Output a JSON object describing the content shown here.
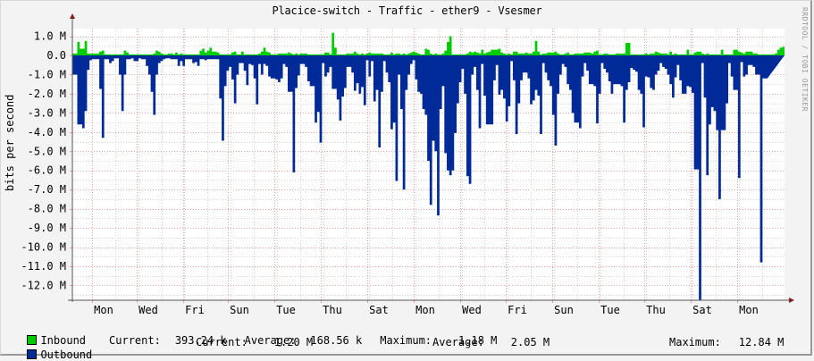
{
  "title": "Placice-switch - Traffic - ether9 - Vsesmer",
  "watermark": "RRDTOOL / TOBI OETIKER",
  "colors": {
    "background": "#f3f3f3",
    "plot_bg": "#ffffff",
    "inbound": "#00cc00",
    "outbound": "#002a97",
    "grid_major": "#e8a0a0",
    "grid_minor": "#d0d0d0",
    "axis": "#555555",
    "arrow": "#8b1a1a"
  },
  "legend": {
    "inbound": {
      "label": "Inbound",
      "current_label": "Current:",
      "current": "393.24 k",
      "average_label": "Average:",
      "average": "168.56 k",
      "maximum_label": "Maximum:",
      "maximum": "1.18 M"
    },
    "outbound": {
      "label": "Outbound",
      "current_label": "Current:",
      "current": "1.20 M",
      "average_label": "Average:",
      "average": "2.05 M",
      "maximum_label": "Maximum:",
      "maximum": "12.84 M"
    }
  },
  "chart_data": {
    "type": "area",
    "title": "Placice-switch - Traffic - ether9 - Vsesmer",
    "xlabel": "",
    "ylabel": "bits per second",
    "ylim": [
      -12.84,
      1.2
    ],
    "y_unit": "M",
    "y_ticks": [
      "1.0 M",
      "0.0",
      "-1.0 M",
      "-2.0 M",
      "-3.0 M",
      "-4.0 M",
      "-5.0 M",
      "-6.0 M",
      "-7.0 M",
      "-8.0 M",
      "-9.0 M",
      "-10.0 M",
      "-11.0 M",
      "-12.0 M"
    ],
    "x_ticks": [
      "Mon",
      "Wed",
      "Fri",
      "Sun",
      "Tue",
      "Thu",
      "Sat",
      "Mon",
      "Wed",
      "Fri",
      "Sun",
      "Tue",
      "Thu",
      "Sat",
      "Mon"
    ],
    "grid": true,
    "legend_position": "bottom",
    "series": [
      {
        "name": "Inbound",
        "sign": "positive",
        "color": "#00cc00",
        "values": [
          0.1,
          0.1,
          0.7,
          0.35,
          0.35,
          0.75,
          0.1,
          0.1,
          0.1,
          0.1,
          0.1,
          0.2,
          0.25,
          0.05,
          0.05,
          0.05,
          0.05,
          0.05,
          0.05,
          0.05,
          0.05,
          0.25,
          0.15,
          0.05,
          0.05,
          0.05,
          0.05,
          0.05,
          0.05,
          0.05,
          0.05,
          0.05,
          0.05,
          0.1,
          0.25,
          0.2,
          0.1,
          0.05,
          0.05,
          0.1,
          0.1,
          0.05,
          0.15,
          0.05,
          0.1,
          0.05,
          0.05,
          0.05,
          0.05,
          0.05,
          0.05,
          0.05,
          0.25,
          0.35,
          0.15,
          0.25,
          0.4,
          0.2,
          0.2,
          0.15,
          0.05,
          0.05,
          0.05,
          0.05,
          0.05,
          0.15,
          0.2,
          0.05,
          0.05,
          0.2,
          0.05,
          0.05,
          0.05,
          0.05,
          0.05,
          0.05,
          0.1,
          0.2,
          0.4,
          0.2,
          0.15,
          0.05,
          0.05,
          0.05,
          0.1,
          0.1,
          0.1,
          0.1,
          0.15,
          0.1,
          0.05,
          0.1,
          0.05,
          0.1,
          0.1,
          0.1,
          0.05,
          0.05,
          0.05,
          0.05,
          0.05,
          0.05,
          0.05,
          0.15,
          0.15,
          0.05,
          1.18,
          0.4,
          0.05,
          0.05,
          0.05,
          0.05,
          0.1,
          0.1,
          0.1,
          0.2,
          0.1,
          0.05,
          0.1,
          0.05,
          0.1,
          0.15,
          0.1,
          0.1,
          0.1,
          0.1,
          0.1,
          0.05,
          0.05,
          0.05,
          0.15,
          0.05,
          0.1,
          0.1,
          0.05,
          0.1,
          0.05,
          0.1,
          0.15,
          0.2,
          0.15,
          0.1,
          0.05,
          0.05,
          0.35,
          0.3,
          0.1,
          0.05,
          0.1,
          0.05,
          0.05,
          0.1,
          0.25,
          0.7,
          1.0,
          0.05,
          0.05,
          0.05,
          0.05,
          0.05,
          0.05,
          0.1,
          0.2,
          0.15,
          0.2,
          0.15,
          0.1,
          0.3,
          0.1,
          0.15,
          0.2,
          0.3,
          0.3,
          0.3,
          0.35,
          0.15,
          0.1,
          0.05,
          0.1,
          0.05,
          0.2,
          0.2,
          0.1,
          0.1,
          0.1,
          0.15,
          0.1,
          0.1,
          0.2,
          0.75,
          0.2,
          0.05,
          0.1,
          0.1,
          0.15,
          0.15,
          0.15,
          0.2,
          0.1,
          0.05,
          0.05,
          0.1,
          0.15,
          0.05,
          0.05,
          0.1,
          0.1,
          0.1,
          0.1,
          0.15,
          0.15,
          0.15,
          0.1,
          0.2,
          0.25,
          0.05,
          0.05,
          0.1,
          0.1,
          0.05,
          0.05,
          0.05,
          0.1,
          0.1,
          0.1,
          0.1,
          0.65,
          0.65,
          0.05,
          0.05,
          0.05,
          0.05,
          0.05,
          0.05,
          0.1,
          0.05,
          0.1,
          0.1,
          0.2,
          0.15,
          0.1,
          0.1,
          0.1,
          0.05,
          0.2,
          0.05,
          0.1,
          0.05,
          0.05,
          0.05,
          0.05,
          0.3,
          0.05,
          0.05,
          0.15,
          0.2,
          0.2,
          0.1,
          0.05,
          0.1,
          0.05,
          0.05,
          0.05,
          0.05,
          0.05,
          0.3,
          0.05,
          0.05,
          0.05,
          0.05,
          0.3,
          0.3,
          0.2,
          0.15,
          0.1,
          0.2,
          0.2,
          0.2,
          0.1,
          0.1,
          0.05,
          0.05,
          0.05,
          0.05,
          0.05,
          0.05,
          0.05,
          0.1,
          0.3,
          0.4,
          0.45
        ]
      },
      {
        "name": "Outbound",
        "sign": "negative",
        "color": "#002a97",
        "values": [
          1.0,
          1.0,
          3.6,
          3.6,
          3.8,
          2.9,
          0.75,
          0.25,
          0.2,
          0.2,
          0.2,
          1.75,
          4.3,
          0.2,
          0.2,
          0.4,
          0.3,
          0.15,
          0.15,
          1.0,
          2.9,
          1.0,
          0.2,
          0.2,
          0.15,
          0.3,
          0.3,
          0.15,
          0.2,
          0.2,
          0.55,
          1.0,
          1.9,
          3.1,
          1.0,
          0.4,
          0.3,
          0.2,
          0.15,
          0.15,
          0.2,
          0.2,
          0.2,
          0.55,
          0.3,
          0.55,
          0.2,
          0.2,
          0.2,
          0.4,
          0.35,
          0.55,
          0.2,
          0.2,
          0.25,
          0.2,
          0.2,
          0.2,
          0.2,
          0.2,
          2.25,
          4.45,
          1.6,
          0.8,
          0.6,
          1.25,
          2.5,
          1.0,
          0.4,
          0.4,
          0.8,
          1.55,
          0.45,
          0.5,
          1.2,
          2.55,
          0.45,
          1.0,
          0.45,
          0.55,
          1.1,
          1.2,
          1.2,
          1.25,
          1.4,
          1.2,
          0.45,
          0.6,
          1.9,
          1.9,
          6.1,
          1.7,
          1.05,
          0.45,
          0.45,
          0.6,
          1.35,
          1.6,
          1.6,
          3.5,
          2.95,
          4.55,
          0.4,
          1.1,
          0.9,
          0.6,
          1.75,
          1.75,
          2.3,
          3.4,
          2.15,
          1.7,
          0.6,
          0.6,
          0.9,
          1.85,
          1.45,
          2.0,
          1.65,
          2.6,
          0.25,
          1.1,
          0.3,
          2.4,
          1.8,
          4.8,
          1.9,
          0.3,
          0.9,
          1.4,
          3.85,
          3.5,
          6.55,
          1.0,
          2.8,
          7.0,
          1.8,
          1.0,
          0.45,
          0.25,
          1.25,
          1.9,
          2.0,
          2.8,
          3.1,
          5.5,
          7.8,
          4.45,
          5.0,
          8.35,
          2.8,
          1.6,
          5.1,
          6.0,
          6.25,
          6.0,
          4.05,
          2.5,
          1.4,
          0.7,
          2.0,
          6.3,
          6.7,
          1.0,
          0.6,
          1.8,
          3.8,
          0.45,
          2.1,
          3.6,
          3.6,
          3.6,
          1.3,
          0.5,
          2.05,
          1.8,
          2.25,
          3.45,
          2.65,
          0.3,
          1.3,
          4.1,
          2.5,
          1.3,
          0.9,
          0.9,
          1.2,
          2.55,
          2.35,
          1.8,
          2.1,
          4.1,
          0.4,
          0.9,
          1.3,
          1.6,
          3.1,
          4.7,
          2.0,
          1.0,
          0.45,
          0.6,
          1.5,
          1.8,
          3.0,
          3.5,
          3.5,
          3.8,
          1.1,
          0.4,
          0.8,
          1.5,
          1.5,
          1.6,
          3.55,
          2.0,
          0.4,
          0.7,
          0.9,
          1.35,
          2.0,
          1.5,
          1.5,
          1.5,
          1.6,
          3.5,
          1.8,
          1.4,
          0.65,
          0.75,
          0.85,
          1.8,
          2.0,
          3.75,
          1.1,
          1.15,
          1.7,
          1.8,
          1.0,
          0.8,
          0.4,
          0.6,
          0.7,
          1.0,
          1.5,
          2.2,
          1.15,
          0.5,
          1.3,
          2.0,
          2.0,
          1.6,
          1.65,
          1.95,
          5.95,
          5.95,
          12.84,
          0.4,
          2.2,
          6.25,
          3.6,
          2.7,
          2.9,
          3.9,
          7.5,
          3.9,
          3.9,
          2.5,
          0.4,
          1.1,
          1.8,
          1.8,
          6.4,
          0.35,
          1.1,
          1.0,
          0.5,
          0.5,
          0.6,
          1.0,
          1.0,
          10.8,
          1.2,
          1.2
        ]
      }
    ]
  }
}
